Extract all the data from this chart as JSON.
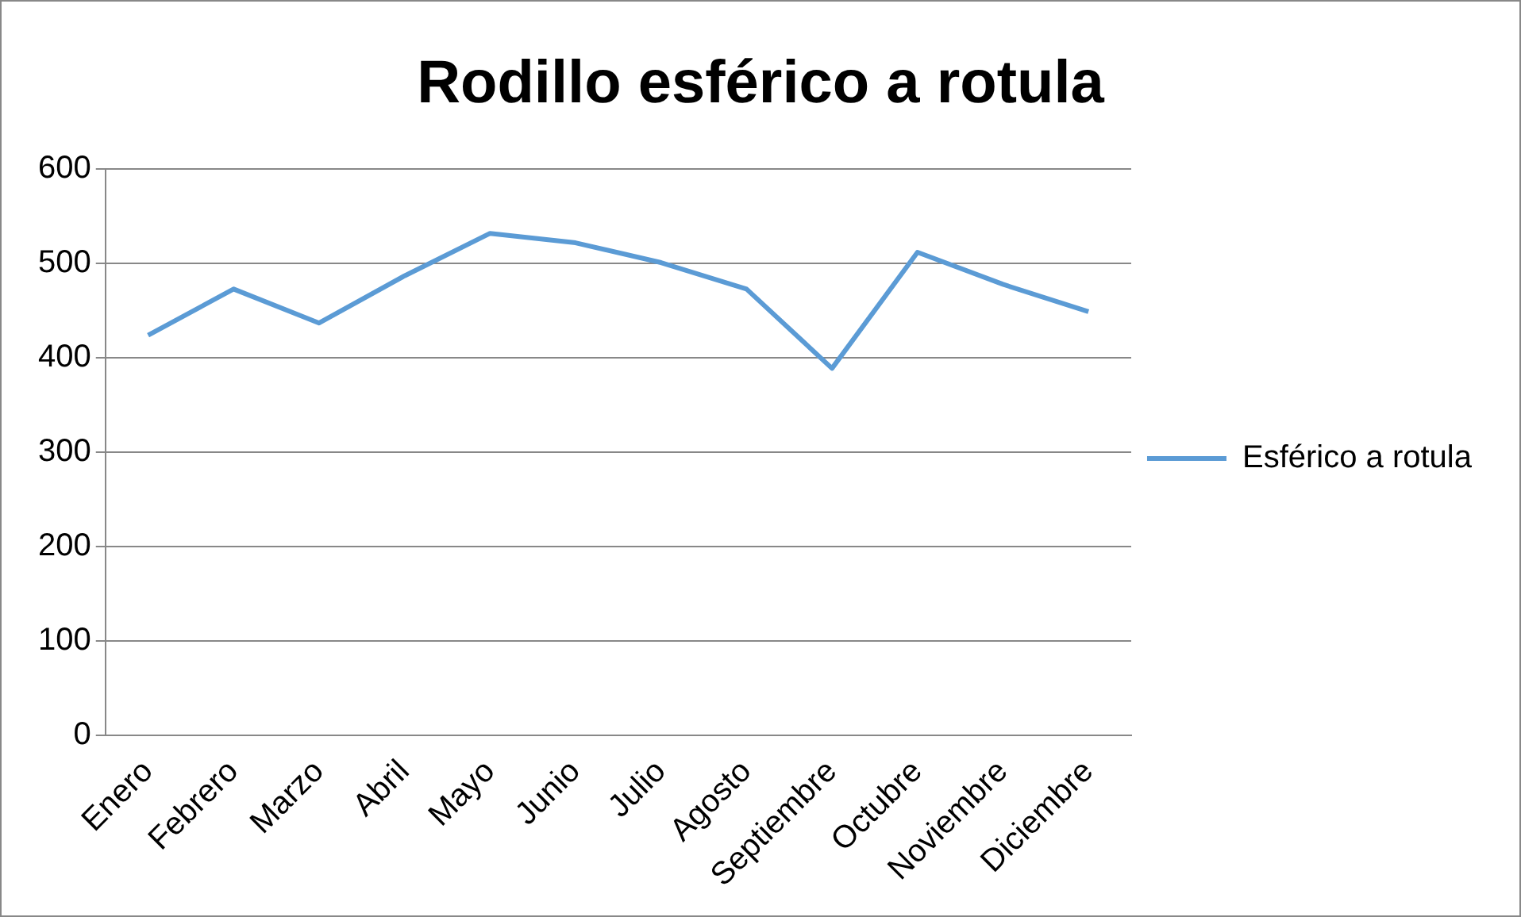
{
  "chart_data": {
    "type": "line",
    "title": "Rodillo esférico a rotula",
    "categories": [
      "Enero",
      "Febrero",
      "Marzo",
      "Abril",
      "Mayo",
      "Junio",
      "Julio",
      "Agosto",
      "Septiembre",
      "Octubre",
      "Noviembre",
      "Diciembre"
    ],
    "series": [
      {
        "name": "Esférico a rotula",
        "color": "#5b9bd5",
        "values": [
          424,
          473,
          437,
          487,
          532,
          522,
          501,
          473,
          389,
          512,
          478,
          449
        ]
      }
    ],
    "ylim": [
      0,
      600
    ],
    "yticks": [
      0,
      100,
      200,
      300,
      400,
      500,
      600
    ],
    "grid": "y",
    "legend": "right",
    "marker": "none",
    "line_style": "solid"
  }
}
